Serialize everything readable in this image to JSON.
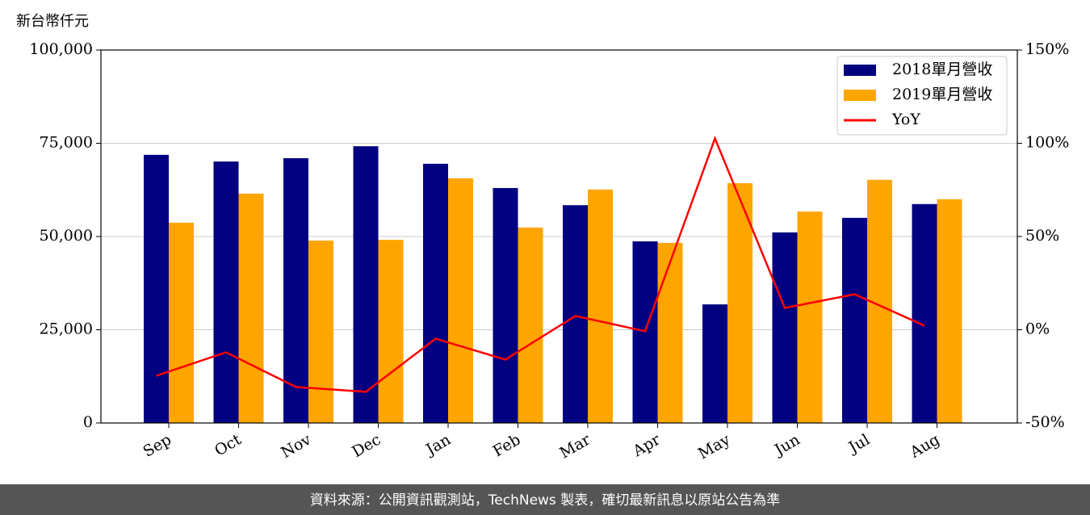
{
  "chart_data": {
    "type": "bar",
    "y_axis_label": "新台幣仟元",
    "categories": [
      "Sep",
      "Oct",
      "Nov",
      "Dec",
      "Jan",
      "Feb",
      "Mar",
      "Apr",
      "May",
      "Jun",
      "Jul",
      "Aug"
    ],
    "series": [
      {
        "name": "2018單月營收",
        "color": "#000080",
        "values": [
          71900,
          70100,
          71000,
          74200,
          69500,
          63000,
          58400,
          48700,
          31800,
          51100,
          55000,
          58700
        ]
      },
      {
        "name": "2019單月營收",
        "color": "#ffa500",
        "values": [
          53700,
          61500,
          48900,
          49100,
          65600,
          52400,
          62600,
          48300,
          64300,
          56700,
          65200,
          60000
        ]
      },
      {
        "name": "YoY",
        "color": "#ff0000",
        "axis": "y2",
        "values": [
          -24.7,
          -12.1,
          -30.7,
          -33.3,
          -4.8,
          -16,
          7.4,
          -0.8,
          102.6,
          11.7,
          19,
          2.2
        ]
      }
    ],
    "ylim": [
      0,
      100000
    ],
    "yticks": [
      0,
      {
        "value": 25000,
        "label": "25,000"
      },
      {
        "value": 50000,
        "label": "50,000"
      },
      {
        "value": 75000,
        "label": "75,000"
      },
      {
        "value": 100000,
        "label": "100,000"
      }
    ],
    "y2lim": [
      -50,
      150
    ],
    "y2ticks": [
      {
        "value": -50,
        "label": "-50%"
      },
      {
        "value": 0,
        "label": "0%"
      },
      {
        "value": 50,
        "label": "50%"
      },
      {
        "value": 100,
        "label": "100%"
      },
      {
        "value": 150,
        "label": "150%"
      }
    ],
    "grid": true,
    "legend": "upper right"
  },
  "footer": {
    "text": "資料來源：公開資訊觀測站，TechNews 製表，確切最新訊息以原站公告為準"
  }
}
